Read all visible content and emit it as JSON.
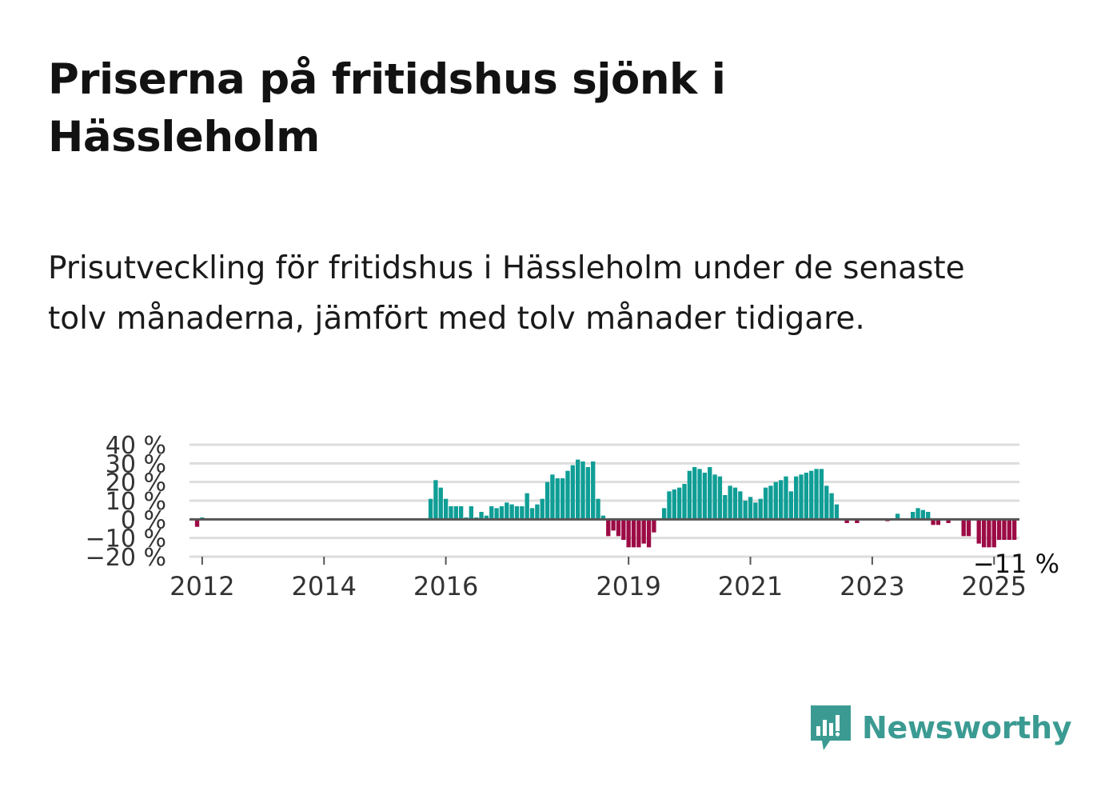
{
  "title": "Priserna på fritidshus sjönk i Hässleholm",
  "subtitle": "Prisutveckling för fritidshus i Hässleholm under de senaste tolv månaderna, jämfört med tolv månader tidigare.",
  "brand": {
    "name": "Newsworthy",
    "color": "#3b9b93",
    "icon": "newsworthy-bar-chart-icon"
  },
  "chart_data": {
    "type": "bar",
    "y_unit": "%",
    "ylim": [
      -20,
      40
    ],
    "y_ticks": [
      40,
      30,
      20,
      10,
      0,
      -10,
      -20
    ],
    "y_tick_labels": [
      "40 %",
      "30 %",
      "20 %",
      "10 %",
      "0 %",
      "−10 %",
      "−20 %"
    ],
    "grid": true,
    "x_ticks": [
      2012,
      2014,
      2016,
      2019,
      2021,
      2023,
      2025
    ],
    "x_tick_labels": [
      "2012",
      "2014",
      "2016",
      "2019",
      "2021",
      "2023",
      "2025"
    ],
    "colors": {
      "positive": "#0f9e96",
      "negative": "#9c0b45",
      "zero_line": "#555555",
      "grid": "#dddddd"
    },
    "annotation": {
      "text": "−11 %",
      "value": -11,
      "at": "2025-06"
    },
    "series": [
      {
        "start": "2011-12",
        "frequency": "monthly",
        "values": [
          -4,
          1,
          0,
          0,
          0,
          0,
          0,
          0,
          0,
          0,
          0,
          0,
          0,
          0,
          0,
          0,
          0,
          0,
          0,
          0,
          0,
          0,
          0,
          0,
          0,
          0,
          0,
          0,
          0,
          0,
          0,
          0,
          0,
          0,
          0,
          0,
          0,
          0,
          0,
          0,
          0,
          0,
          0,
          0,
          0,
          0,
          11,
          21,
          17,
          11,
          7,
          7,
          7,
          1,
          7,
          1,
          4,
          2,
          7,
          6,
          7,
          9,
          8,
          7,
          7,
          14,
          6,
          8,
          11,
          20,
          24,
          22,
          22,
          26,
          29,
          32,
          31,
          28,
          31,
          11,
          2,
          -9,
          -6,
          -9,
          -11,
          -15,
          -15,
          -15,
          -13,
          -15,
          -7,
          0,
          6,
          15,
          16,
          17,
          19,
          26,
          28,
          27,
          25,
          28,
          24,
          23,
          13,
          18,
          17,
          15,
          10,
          12,
          9,
          11,
          17,
          18,
          20,
          21,
          23,
          15,
          23,
          24,
          25,
          26,
          27,
          27,
          18,
          14,
          8,
          0,
          -2,
          0,
          -2,
          0,
          0,
          0,
          0,
          0,
          -1,
          0,
          3,
          0,
          0,
          4,
          6,
          5,
          4,
          -3,
          -3,
          0,
          -2,
          0,
          0,
          -9,
          -9,
          0,
          -13,
          -15,
          -15,
          -15,
          -11,
          -11,
          -11,
          -11
        ]
      }
    ]
  }
}
